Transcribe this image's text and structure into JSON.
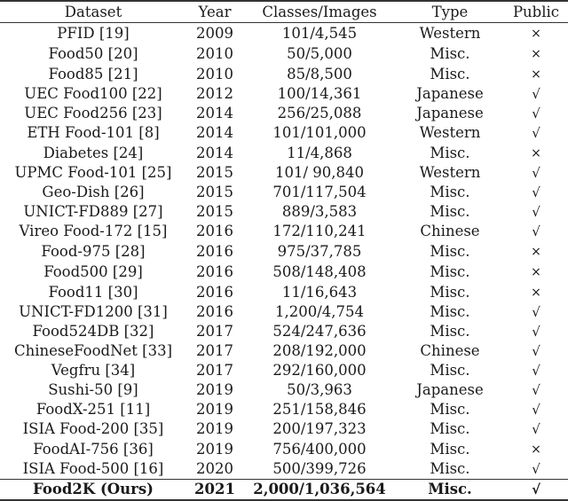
{
  "table": {
    "headers": {
      "dataset": "Dataset",
      "year": "Year",
      "classes_images": "Classes/Images",
      "type": "Type",
      "public": "Public"
    },
    "symbols": {
      "yes": "√",
      "no": "×"
    },
    "rows": [
      {
        "dataset": "PFID [19]",
        "year": "2009",
        "classes_images": "101/4,545",
        "type": "Western",
        "public": "×"
      },
      {
        "dataset": "Food50 [20]",
        "year": "2010",
        "classes_images": "50/5,000",
        "type": "Misc.",
        "public": "×"
      },
      {
        "dataset": "Food85 [21]",
        "year": "2010",
        "classes_images": "85/8,500",
        "type": "Misc.",
        "public": "×"
      },
      {
        "dataset": "UEC Food100 [22]",
        "year": "2012",
        "classes_images": "100/14,361",
        "type": "Japanese",
        "public": "√"
      },
      {
        "dataset": "UEC Food256 [23]",
        "year": "2014",
        "classes_images": "256/25,088",
        "type": "Japanese",
        "public": "√"
      },
      {
        "dataset": "ETH Food-101 [8]",
        "year": "2014",
        "classes_images": "101/101,000",
        "type": "Western",
        "public": "√"
      },
      {
        "dataset": "Diabetes  [24]",
        "year": "2014",
        "classes_images": "11/4,868",
        "type": "Misc.",
        "public": "×"
      },
      {
        "dataset": "UPMC Food-101 [25]",
        "year": "2015",
        "classes_images": "101/ 90,840",
        "type": "Western",
        "public": "√"
      },
      {
        "dataset": "Geo-Dish [26]",
        "year": "2015",
        "classes_images": "701/117,504",
        "type": "Misc.",
        "public": "√"
      },
      {
        "dataset": "UNICT-FD889 [27]",
        "year": "2015",
        "classes_images": "889/3,583",
        "type": "Misc.",
        "public": "√"
      },
      {
        "dataset": "Vireo Food-172 [15]",
        "year": "2016",
        "classes_images": "172/110,241",
        "type": "Chinese",
        "public": "√"
      },
      {
        "dataset": "Food-975 [28]",
        "year": "2016",
        "classes_images": "975/37,785",
        "type": "Misc.",
        "public": "×"
      },
      {
        "dataset": "Food500 [29]",
        "year": "2016",
        "classes_images": "508/148,408",
        "type": "Misc.",
        "public": "×"
      },
      {
        "dataset": "Food11 [30]",
        "year": "2016",
        "classes_images": "11/16,643",
        "type": "Misc.",
        "public": "×"
      },
      {
        "dataset": "UNICT-FD1200 [31]",
        "year": "2016",
        "classes_images": "1,200/4,754",
        "type": "Misc.",
        "public": "√"
      },
      {
        "dataset": "Food524DB [32]",
        "year": "2017",
        "classes_images": "524/247,636",
        "type": "Misc.",
        "public": "√"
      },
      {
        "dataset": "ChineseFoodNet [33]",
        "year": "2017",
        "classes_images": "208/192,000",
        "type": "Chinese",
        "public": "√"
      },
      {
        "dataset": "Vegfru [34]",
        "year": "2017",
        "classes_images": "292/160,000",
        "type": "Misc.",
        "public": "√"
      },
      {
        "dataset": "Sushi-50 [9]",
        "year": "2019",
        "classes_images": "50/3,963",
        "type": "Japanese",
        "public": "√"
      },
      {
        "dataset": "FoodX-251 [11]",
        "year": "2019",
        "classes_images": "251/158,846",
        "type": "Misc.",
        "public": "√"
      },
      {
        "dataset": "ISIA Food-200 [35]",
        "year": "2019",
        "classes_images": "200/197,323",
        "type": "Misc.",
        "public": "√"
      },
      {
        "dataset": "FoodAI-756 [36]",
        "year": "2019",
        "classes_images": "756/400,000",
        "type": "Misc.",
        "public": "×"
      },
      {
        "dataset": "ISIA Food-500 [16]",
        "year": "2020",
        "classes_images": "500/399,726",
        "type": "Misc.",
        "public": "√"
      }
    ],
    "ours": {
      "dataset": "Food2K (Ours)",
      "year": "2021",
      "classes_images": "2,000/1,036,564",
      "type": "Misc.",
      "public": "√"
    }
  }
}
